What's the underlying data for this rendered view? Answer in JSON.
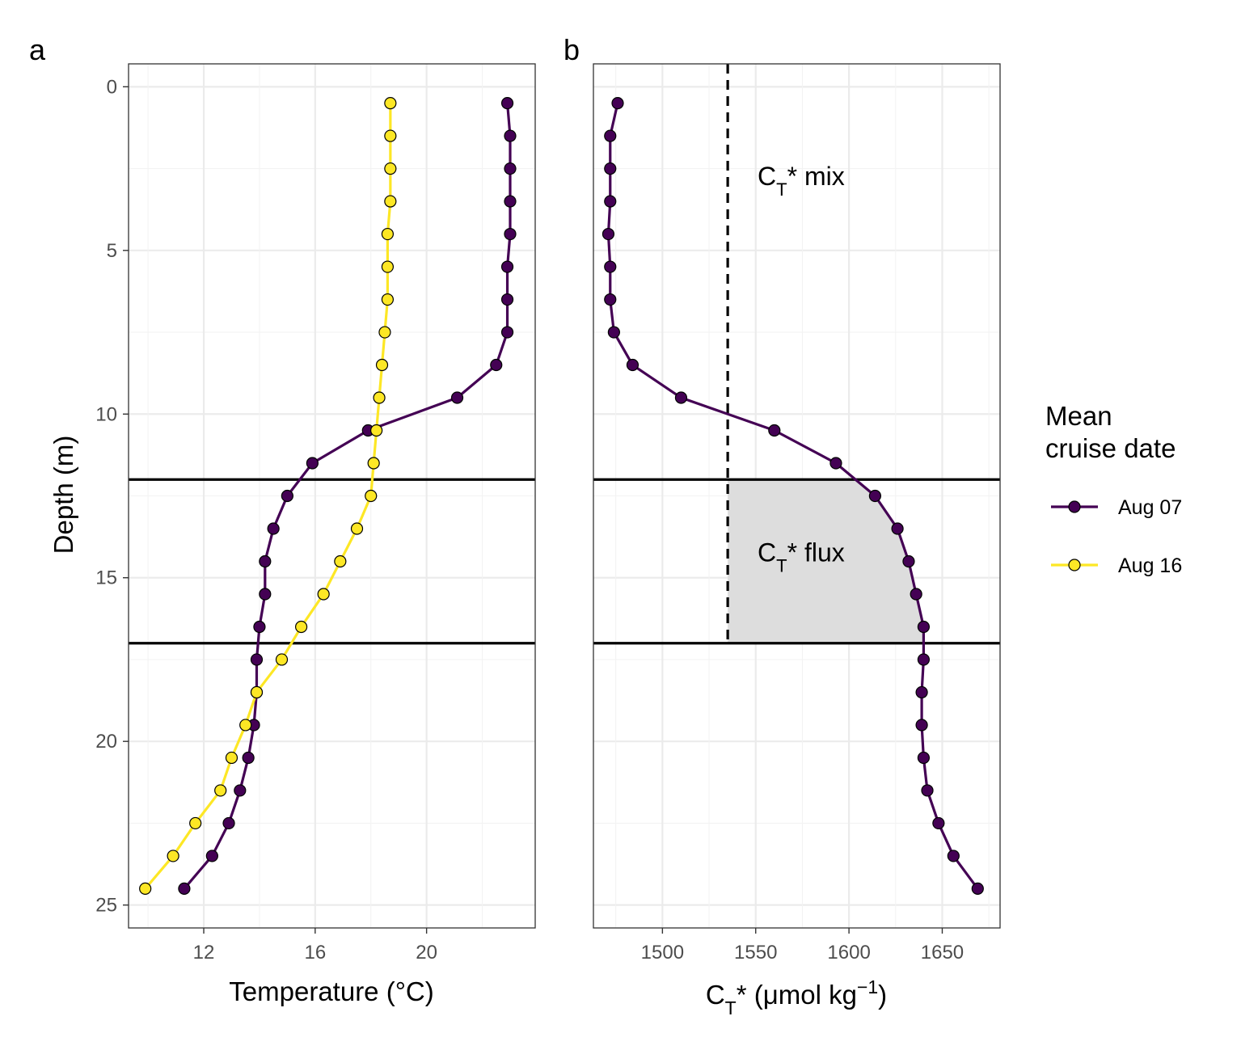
{
  "chart_data": [
    {
      "panel_label": "a",
      "type": "line",
      "xlabel": "Temperature (°C)",
      "ylabel": "Depth (m)",
      "xlim": [
        9.3,
        23.9
      ],
      "ylim": [
        25.7,
        -0.7
      ],
      "y_reversed": true,
      "x_ticks": [
        12,
        16,
        20
      ],
      "y_ticks": [
        0,
        5,
        10,
        15,
        20,
        25
      ],
      "grid": true,
      "hlines": [
        12,
        17
      ],
      "series": [
        {
          "name": "Aug 07",
          "color": "#440154",
          "points": [
            [
              22.9,
              0.5
            ],
            [
              23.0,
              1.5
            ],
            [
              23.0,
              2.5
            ],
            [
              23.0,
              3.5
            ],
            [
              23.0,
              4.5
            ],
            [
              22.9,
              5.5
            ],
            [
              22.9,
              6.5
            ],
            [
              22.9,
              7.5
            ],
            [
              22.5,
              8.5
            ],
            [
              21.1,
              9.5
            ],
            [
              17.9,
              10.5
            ],
            [
              15.9,
              11.5
            ],
            [
              15.0,
              12.5
            ],
            [
              14.5,
              13.5
            ],
            [
              14.2,
              14.5
            ],
            [
              14.2,
              15.5
            ],
            [
              14.0,
              16.5
            ],
            [
              13.9,
              17.5
            ],
            [
              13.9,
              18.5
            ],
            [
              13.8,
              19.5
            ],
            [
              13.6,
              20.5
            ],
            [
              13.3,
              21.5
            ],
            [
              12.9,
              22.5
            ],
            [
              12.3,
              23.5
            ],
            [
              11.3,
              24.5
            ]
          ]
        },
        {
          "name": "Aug 16",
          "color": "#FDE725",
          "points": [
            [
              18.7,
              0.5
            ],
            [
              18.7,
              1.5
            ],
            [
              18.7,
              2.5
            ],
            [
              18.7,
              3.5
            ],
            [
              18.6,
              4.5
            ],
            [
              18.6,
              5.5
            ],
            [
              18.6,
              6.5
            ],
            [
              18.5,
              7.5
            ],
            [
              18.4,
              8.5
            ],
            [
              18.3,
              9.5
            ],
            [
              18.2,
              10.5
            ],
            [
              18.1,
              11.5
            ],
            [
              18.0,
              12.5
            ],
            [
              17.5,
              13.5
            ],
            [
              16.9,
              14.5
            ],
            [
              16.3,
              15.5
            ],
            [
              15.5,
              16.5
            ],
            [
              14.8,
              17.5
            ],
            [
              13.9,
              18.5
            ],
            [
              13.5,
              19.5
            ],
            [
              13.0,
              20.5
            ],
            [
              12.6,
              21.5
            ],
            [
              11.7,
              22.5
            ],
            [
              10.9,
              23.5
            ],
            [
              9.9,
              24.5
            ]
          ]
        }
      ]
    },
    {
      "panel_label": "b",
      "type": "line",
      "xlabel": {
        "base": "C",
        "sub": "T",
        "rest": "* (μmol kg",
        "sup": "−1",
        "close": ")"
      },
      "ylabel": "",
      "xlim": [
        1463,
        1681
      ],
      "ylim": [
        25.7,
        -0.7
      ],
      "y_reversed": true,
      "x_ticks": [
        1500,
        1550,
        1600,
        1650
      ],
      "grid": true,
      "hlines": [
        12,
        17
      ],
      "vline_dashed": 1535,
      "shaded_region": {
        "x_start": 1535,
        "depth_from": 12,
        "depth_to": 17
      },
      "annotations": [
        {
          "base": "C",
          "sub": "T",
          "rest": "* mix",
          "x": 1551,
          "y": 3.0
        },
        {
          "base": "C",
          "sub": "T",
          "rest": "* flux",
          "x": 1551,
          "y": 14.5
        }
      ],
      "series": [
        {
          "name": "Aug 07",
          "color": "#440154",
          "points": [
            [
              1476,
              0.5
            ],
            [
              1472,
              1.5
            ],
            [
              1472,
              2.5
            ],
            [
              1472,
              3.5
            ],
            [
              1471,
              4.5
            ],
            [
              1472,
              5.5
            ],
            [
              1472,
              6.5
            ],
            [
              1474,
              7.5
            ],
            [
              1484,
              8.5
            ],
            [
              1510,
              9.5
            ],
            [
              1560,
              10.5
            ],
            [
              1593,
              11.5
            ],
            [
              1614,
              12.5
            ],
            [
              1626,
              13.5
            ],
            [
              1632,
              14.5
            ],
            [
              1636,
              15.5
            ],
            [
              1640,
              16.5
            ],
            [
              1640,
              17.5
            ],
            [
              1639,
              18.5
            ],
            [
              1639,
              19.5
            ],
            [
              1640,
              20.5
            ],
            [
              1642,
              21.5
            ],
            [
              1648,
              22.5
            ],
            [
              1656,
              23.5
            ],
            [
              1669,
              24.5
            ]
          ]
        }
      ]
    }
  ],
  "legend": {
    "title_lines": [
      "Mean",
      "cruise date"
    ],
    "entries": [
      {
        "label": "Aug 07",
        "color": "#440154"
      },
      {
        "label": "Aug 16",
        "color": "#FDE725"
      }
    ],
    "placement": "right"
  }
}
